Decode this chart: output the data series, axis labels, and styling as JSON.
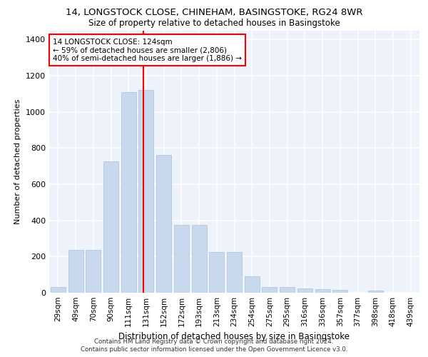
{
  "title": "14, LONGSTOCK CLOSE, CHINEHAM, BASINGSTOKE, RG24 8WR",
  "subtitle": "Size of property relative to detached houses in Basingstoke",
  "xlabel": "Distribution of detached houses by size in Basingstoke",
  "ylabel": "Number of detached properties",
  "bar_color": "#c8d9ee",
  "bar_edge_color": "#a8c0de",
  "background_color": "#eef2fb",
  "grid_color": "#ffffff",
  "categories": [
    "29sqm",
    "49sqm",
    "70sqm",
    "90sqm",
    "111sqm",
    "131sqm",
    "152sqm",
    "172sqm",
    "193sqm",
    "213sqm",
    "234sqm",
    "254sqm",
    "275sqm",
    "295sqm",
    "316sqm",
    "336sqm",
    "357sqm",
    "377sqm",
    "398sqm",
    "418sqm",
    "439sqm"
  ],
  "values": [
    30,
    235,
    235,
    725,
    1110,
    1120,
    760,
    375,
    375,
    225,
    225,
    90,
    30,
    30,
    25,
    20,
    15,
    0,
    10,
    0,
    0
  ],
  "property_label": "14 LONGSTOCK CLOSE: 124sqm",
  "annotation_line1": "← 59% of detached houses are smaller (2,806)",
  "annotation_line2": "40% of semi-detached houses are larger (1,886) →",
  "vline_x": 4.85,
  "ylim": [
    0,
    1450
  ],
  "yticks": [
    0,
    200,
    400,
    600,
    800,
    1000,
    1200,
    1400
  ],
  "footer_line1": "Contains HM Land Registry data © Crown copyright and database right 2024.",
  "footer_line2": "Contains public sector information licensed under the Open Government Licence v3.0."
}
